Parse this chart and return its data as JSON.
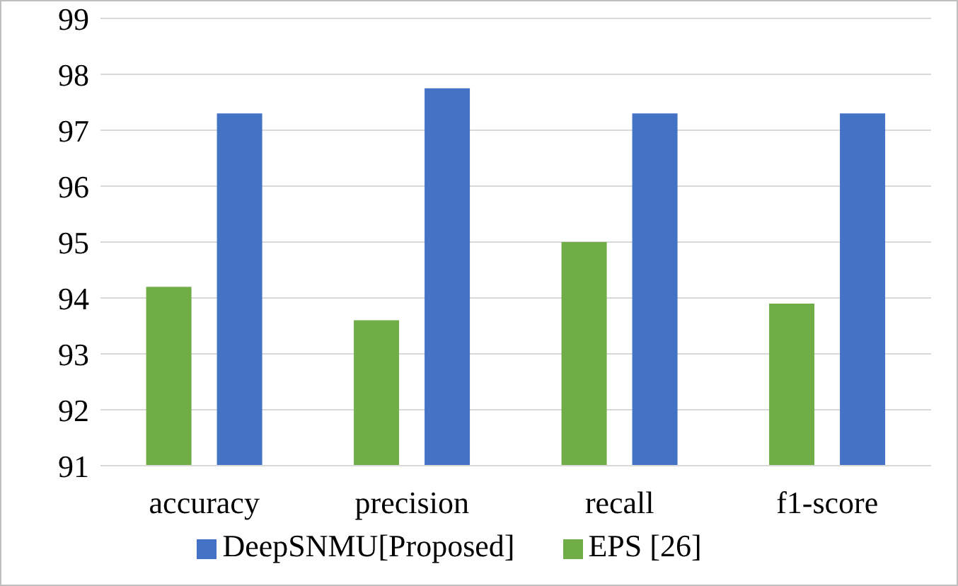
{
  "chart_data": {
    "type": "bar",
    "categories": [
      "accuracy",
      "precision",
      "recall",
      "f1-score"
    ],
    "series": [
      {
        "name": "EPS [26]",
        "color": "#70ad47",
        "values": [
          94.2,
          93.6,
          95.0,
          93.9
        ]
      },
      {
        "name": "DeepSNMU[Proposed]",
        "color": "#4472c4",
        "values": [
          97.3,
          97.75,
          97.3,
          97.3
        ]
      }
    ],
    "ylim": [
      91,
      99
    ],
    "yticks": [
      91,
      92,
      93,
      94,
      95,
      96,
      97,
      98,
      99
    ],
    "grid": "y",
    "legend": "bottom"
  }
}
